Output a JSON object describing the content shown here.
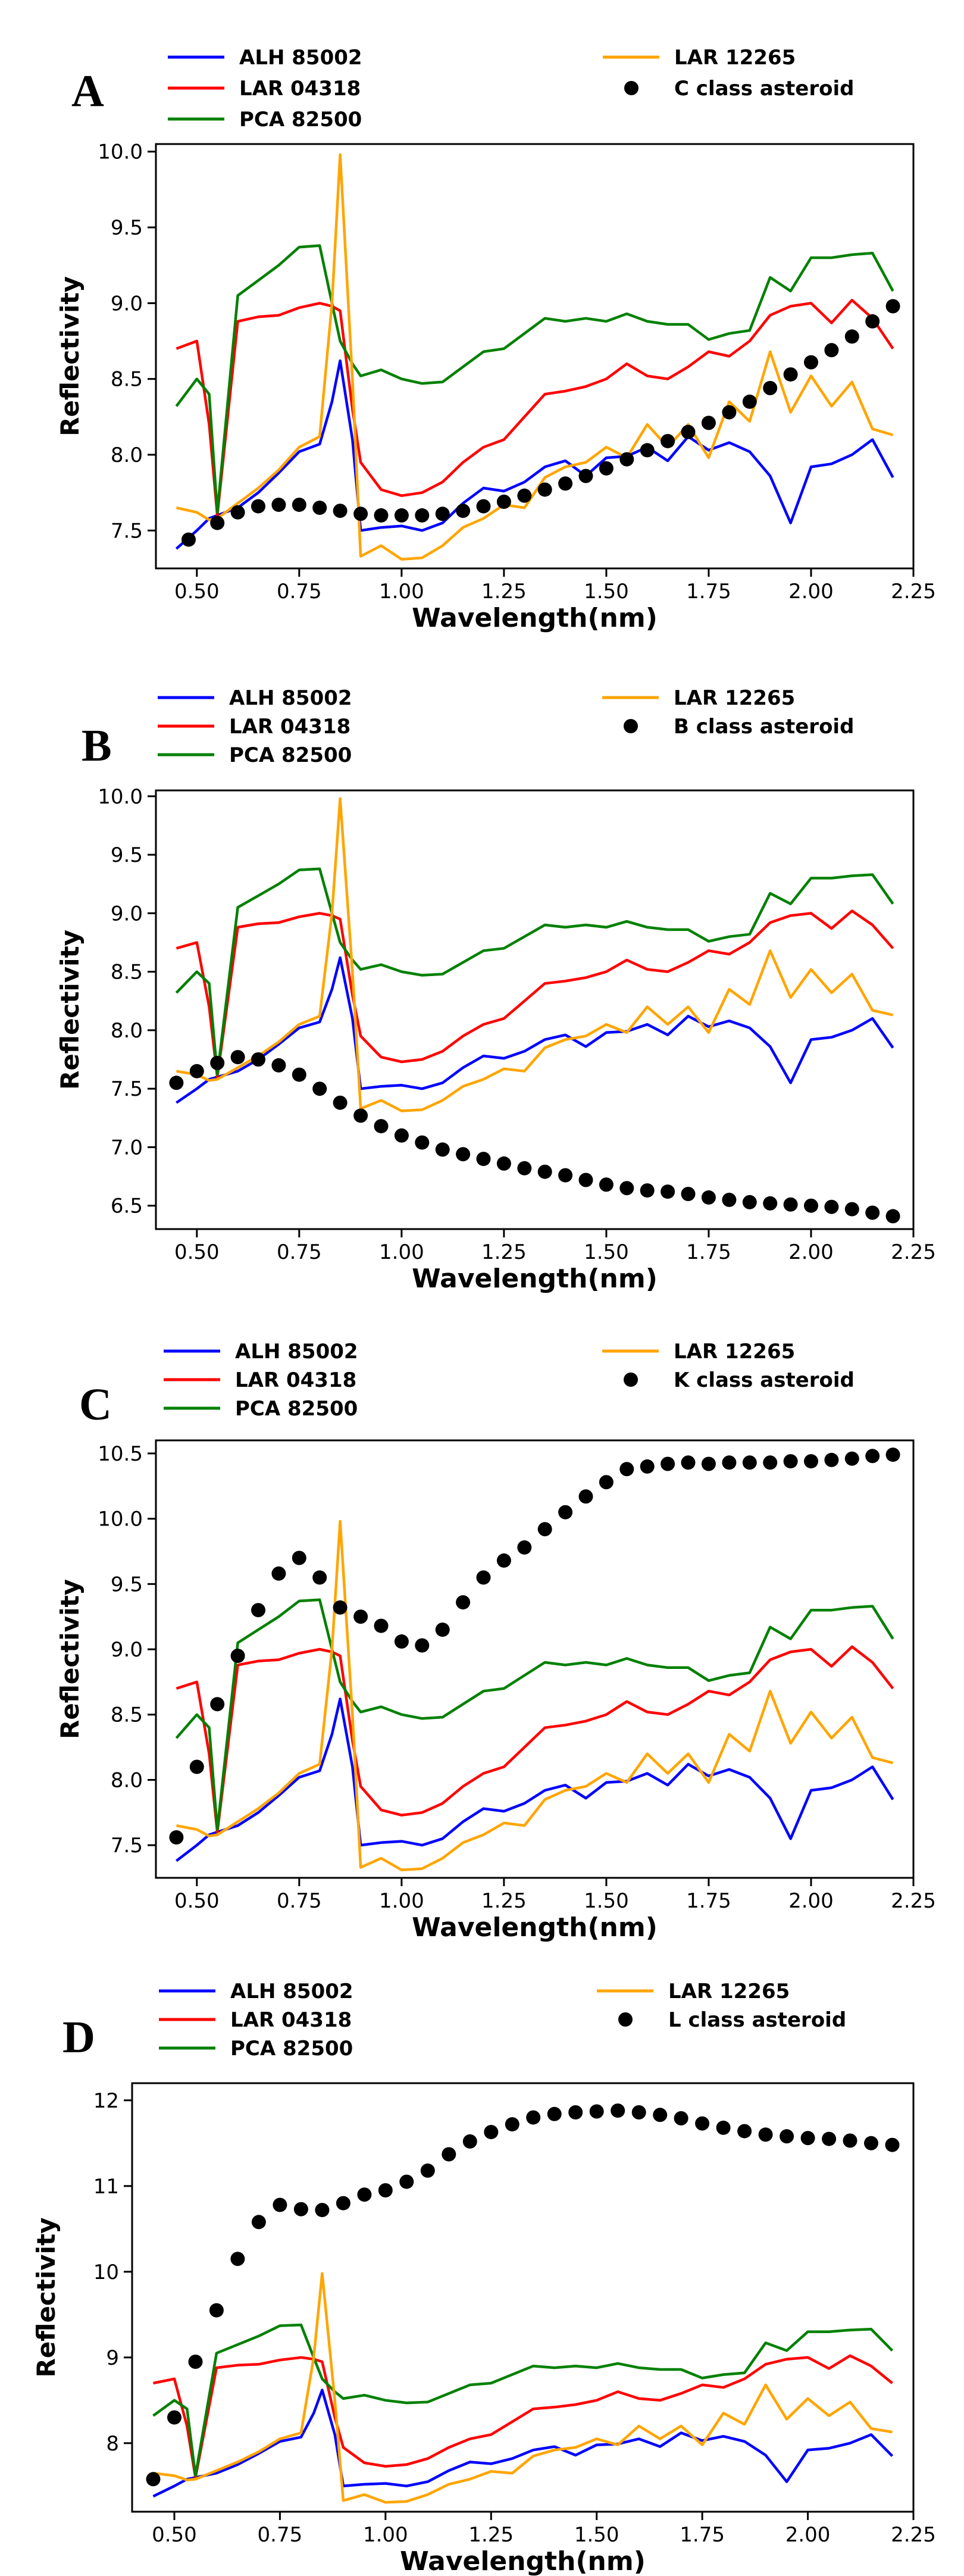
{
  "chart_data": [
    {
      "panel_label": "A",
      "type": "line",
      "xlabel": "Wavelength(nm)",
      "ylabel": "Reflectivity",
      "xlim": [
        0.4,
        2.25
      ],
      "ylim": [
        7.25,
        10.05
      ],
      "xticks": [
        "0.50",
        "0.75",
        "1.00",
        "1.25",
        "1.50",
        "1.75",
        "2.00",
        "2.25"
      ],
      "yticks": [
        "7.5",
        "8.0",
        "8.5",
        "9.0",
        "9.5",
        "10.0"
      ],
      "legend": {
        "position": "top-left",
        "entries": [
          {
            "label": "ALH 85002",
            "color": "#0000ff",
            "marker": "line"
          },
          {
            "label": "LAR 04318",
            "color": "#ff0000",
            "marker": "line"
          },
          {
            "label": "PCA 82500",
            "color": "#008000",
            "marker": "line"
          },
          {
            "label": "LAR 12265",
            "color": "#ffa500",
            "marker": "line"
          },
          {
            "label": "C class asteroid",
            "color": "#000000",
            "marker": "dot"
          }
        ]
      },
      "asteroid": {
        "name": "C class asteroid",
        "x": [
          0.48,
          0.55,
          0.6,
          0.65,
          0.7,
          0.75,
          0.8,
          0.85,
          0.9,
          0.95,
          1.0,
          1.05,
          1.1,
          1.15,
          1.2,
          1.25,
          1.3,
          1.35,
          1.4,
          1.45,
          1.5,
          1.55,
          1.6,
          1.65,
          1.7,
          1.75,
          1.8,
          1.85,
          1.9,
          1.95,
          2.0,
          2.05,
          2.1,
          2.15,
          2.2
        ],
        "y": [
          7.44,
          7.55,
          7.62,
          7.66,
          7.67,
          7.67,
          7.65,
          7.63,
          7.61,
          7.6,
          7.6,
          7.6,
          7.61,
          7.63,
          7.66,
          7.69,
          7.73,
          7.77,
          7.81,
          7.86,
          7.91,
          7.97,
          8.03,
          8.09,
          8.15,
          8.21,
          8.28,
          8.35,
          8.44,
          8.53,
          8.61,
          8.69,
          8.78,
          8.88,
          8.98
        ]
      }
    },
    {
      "panel_label": "B",
      "type": "line",
      "xlabel": "Wavelength(nm)",
      "ylabel": "Reflectivity",
      "xlim": [
        0.4,
        2.25
      ],
      "ylim": [
        6.3,
        10.05
      ],
      "xticks": [
        "0.50",
        "0.75",
        "1.00",
        "1.25",
        "1.50",
        "1.75",
        "2.00",
        "2.25"
      ],
      "yticks": [
        "6.5",
        "7.0",
        "7.5",
        "8.0",
        "8.5",
        "9.0",
        "9.5",
        "10.0"
      ],
      "legend": {
        "position": "top-left",
        "entries": [
          {
            "label": "ALH 85002",
            "color": "#0000ff",
            "marker": "line"
          },
          {
            "label": "LAR 04318",
            "color": "#ff0000",
            "marker": "line"
          },
          {
            "label": "PCA 82500",
            "color": "#008000",
            "marker": "line"
          },
          {
            "label": "LAR 12265",
            "color": "#ffa500",
            "marker": "line"
          },
          {
            "label": "B class asteroid",
            "color": "#000000",
            "marker": "dot"
          }
        ]
      },
      "asteroid": {
        "name": "B class asteroid",
        "x": [
          0.45,
          0.5,
          0.55,
          0.6,
          0.65,
          0.7,
          0.75,
          0.8,
          0.85,
          0.9,
          0.95,
          1.0,
          1.05,
          1.1,
          1.15,
          1.2,
          1.25,
          1.3,
          1.35,
          1.4,
          1.45,
          1.5,
          1.55,
          1.6,
          1.65,
          1.7,
          1.75,
          1.8,
          1.85,
          1.9,
          1.95,
          2.0,
          2.05,
          2.1,
          2.15,
          2.2
        ],
        "y": [
          7.55,
          7.65,
          7.72,
          7.77,
          7.75,
          7.7,
          7.62,
          7.5,
          7.38,
          7.27,
          7.18,
          7.1,
          7.04,
          6.98,
          6.94,
          6.9,
          6.86,
          6.82,
          6.79,
          6.76,
          6.72,
          6.68,
          6.65,
          6.63,
          6.62,
          6.6,
          6.57,
          6.55,
          6.53,
          6.52,
          6.51,
          6.5,
          6.49,
          6.47,
          6.44,
          6.41
        ]
      }
    },
    {
      "panel_label": "C",
      "type": "line",
      "xlabel": "Wavelength(nm)",
      "ylabel": "Reflectivity",
      "xlim": [
        0.4,
        2.25
      ],
      "ylim": [
        7.25,
        10.6
      ],
      "xticks": [
        "0.50",
        "0.75",
        "1.00",
        "1.25",
        "1.50",
        "1.75",
        "2.00",
        "2.25"
      ],
      "yticks": [
        "7.5",
        "8.0",
        "8.5",
        "9.0",
        "9.5",
        "10.0",
        "10.5"
      ],
      "legend": {
        "position": "top-left",
        "entries": [
          {
            "label": "ALH 85002",
            "color": "#0000ff",
            "marker": "line"
          },
          {
            "label": "LAR 04318",
            "color": "#ff0000",
            "marker": "line"
          },
          {
            "label": "PCA 82500",
            "color": "#008000",
            "marker": "line"
          },
          {
            "label": "LAR 12265",
            "color": "#ffa500",
            "marker": "line"
          },
          {
            "label": "K class asteroid",
            "color": "#000000",
            "marker": "dot"
          }
        ]
      },
      "asteroid": {
        "name": "K class asteroid",
        "x": [
          0.45,
          0.5,
          0.55,
          0.6,
          0.65,
          0.7,
          0.75,
          0.8,
          0.85,
          0.9,
          0.95,
          1.0,
          1.05,
          1.1,
          1.15,
          1.2,
          1.25,
          1.3,
          1.35,
          1.4,
          1.45,
          1.5,
          1.55,
          1.6,
          1.65,
          1.7,
          1.75,
          1.8,
          1.85,
          1.9,
          1.95,
          2.0,
          2.05,
          2.1,
          2.15,
          2.2
        ],
        "y": [
          7.56,
          8.1,
          8.58,
          8.95,
          9.3,
          9.58,
          9.7,
          9.55,
          9.32,
          9.25,
          9.18,
          9.06,
          9.03,
          9.15,
          9.36,
          9.55,
          9.68,
          9.78,
          9.92,
          10.05,
          10.17,
          10.28,
          10.38,
          10.4,
          10.42,
          10.43,
          10.42,
          10.43,
          10.43,
          10.43,
          10.44,
          10.44,
          10.45,
          10.46,
          10.48,
          10.49
        ]
      }
    },
    {
      "panel_label": "D",
      "type": "line",
      "xlabel": "Wavelength(nm)",
      "ylabel": "Reflectivity",
      "xlim": [
        0.4,
        2.25
      ],
      "ylim": [
        7.2,
        12.2
      ],
      "xticks": [
        "0.50",
        "0.75",
        "1.00",
        "1.25",
        "1.50",
        "1.75",
        "2.00",
        "2.25"
      ],
      "yticks": [
        "8",
        "9",
        "10",
        "11",
        "12"
      ],
      "legend": {
        "position": "top-left",
        "entries": [
          {
            "label": "ALH 85002",
            "color": "#0000ff",
            "marker": "line"
          },
          {
            "label": "LAR 04318",
            "color": "#ff0000",
            "marker": "line"
          },
          {
            "label": "PCA 82500",
            "color": "#008000",
            "marker": "line"
          },
          {
            "label": "LAR 12265",
            "color": "#ffa500",
            "marker": "line"
          },
          {
            "label": "L class asteroid",
            "color": "#000000",
            "marker": "dot"
          }
        ]
      },
      "asteroid": {
        "name": "L class asteroid",
        "x": [
          0.45,
          0.5,
          0.55,
          0.6,
          0.65,
          0.7,
          0.75,
          0.8,
          0.85,
          0.9,
          0.95,
          1.0,
          1.05,
          1.1,
          1.15,
          1.2,
          1.25,
          1.3,
          1.35,
          1.4,
          1.45,
          1.5,
          1.55,
          1.6,
          1.65,
          1.7,
          1.75,
          1.8,
          1.85,
          1.9,
          1.95,
          2.0,
          2.05,
          2.1,
          2.15,
          2.2
        ],
        "y": [
          7.58,
          8.3,
          8.95,
          9.55,
          10.15,
          10.58,
          10.78,
          10.73,
          10.72,
          10.8,
          10.9,
          10.95,
          11.05,
          11.18,
          11.37,
          11.52,
          11.63,
          11.72,
          11.8,
          11.84,
          11.86,
          11.87,
          11.88,
          11.86,
          11.83,
          11.79,
          11.73,
          11.68,
          11.64,
          11.6,
          11.58,
          11.56,
          11.55,
          11.53,
          11.5,
          11.48
        ]
      }
    }
  ],
  "meteorites": {
    "x": [
      0.45,
      0.5,
      0.53,
      0.55,
      0.6,
      0.65,
      0.7,
      0.75,
      0.8,
      0.83,
      0.85,
      0.88,
      0.9,
      0.95,
      1.0,
      1.05,
      1.1,
      1.15,
      1.2,
      1.25,
      1.3,
      1.35,
      1.4,
      1.45,
      1.5,
      1.55,
      1.6,
      1.65,
      1.7,
      1.75,
      1.8,
      1.85,
      1.9,
      1.95,
      2.0,
      2.05,
      2.1,
      2.15,
      2.2
    ],
    "series": [
      {
        "name": "ALH 85002",
        "color": "#0000ff",
        "y": [
          7.38,
          7.5,
          7.58,
          7.6,
          7.65,
          7.75,
          7.88,
          8.02,
          8.07,
          8.35,
          8.62,
          8.1,
          7.5,
          7.52,
          7.53,
          7.5,
          7.55,
          7.68,
          7.78,
          7.76,
          7.82,
          7.92,
          7.96,
          7.86,
          7.98,
          7.99,
          8.05,
          7.96,
          8.12,
          8.03,
          8.08,
          8.02,
          7.86,
          7.55,
          7.92,
          7.94,
          8.0,
          8.1,
          7.85
        ]
      },
      {
        "name": "LAR 04318",
        "color": "#ff0000",
        "y": [
          8.7,
          8.75,
          8.2,
          7.6,
          8.88,
          8.91,
          8.92,
          8.97,
          9.0,
          8.98,
          8.95,
          8.3,
          7.95,
          7.77,
          7.73,
          7.75,
          7.82,
          7.95,
          8.05,
          8.1,
          8.25,
          8.4,
          8.42,
          8.45,
          8.5,
          8.6,
          8.52,
          8.5,
          8.58,
          8.68,
          8.65,
          8.75,
          8.92,
          8.98,
          9.0,
          8.87,
          9.02,
          8.9,
          8.7
        ]
      },
      {
        "name": "PCA 82500",
        "color": "#008000",
        "y": [
          8.32,
          8.5,
          8.4,
          7.62,
          9.05,
          9.15,
          9.25,
          9.37,
          9.38,
          9.0,
          8.75,
          8.6,
          8.52,
          8.56,
          8.5,
          8.47,
          8.48,
          8.58,
          8.68,
          8.7,
          8.8,
          8.9,
          8.88,
          8.9,
          8.88,
          8.93,
          8.88,
          8.86,
          8.86,
          8.76,
          8.8,
          8.82,
          9.17,
          9.08,
          9.3,
          9.3,
          9.32,
          9.33,
          9.08
        ]
      },
      {
        "name": "LAR 12265",
        "color": "#ffa500",
        "y": [
          7.65,
          7.62,
          7.57,
          7.58,
          7.68,
          7.78,
          7.9,
          8.05,
          8.12,
          9.0,
          9.98,
          8.5,
          7.33,
          7.4,
          7.31,
          7.32,
          7.4,
          7.52,
          7.58,
          7.67,
          7.65,
          7.85,
          7.92,
          7.95,
          8.05,
          7.98,
          8.2,
          8.05,
          8.2,
          7.98,
          8.35,
          8.22,
          8.68,
          8.28,
          8.52,
          8.32,
          8.48,
          8.17,
          8.13
        ]
      }
    ]
  }
}
